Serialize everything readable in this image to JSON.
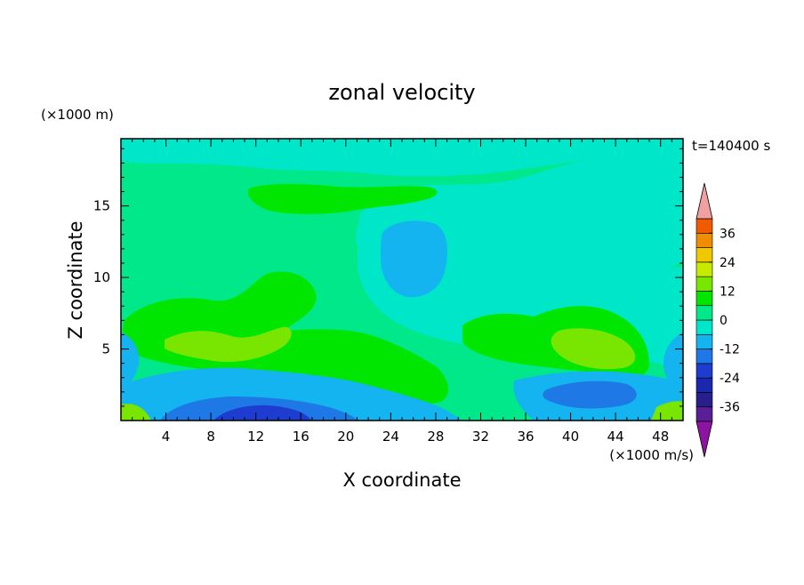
{
  "chart_data": {
    "type": "heatmap",
    "title": "zonal velocity",
    "time_label": "t=140400 s",
    "xlabel": "X coordinate",
    "ylabel": "Z coordinate",
    "x_unit": "(×1000 m/s)",
    "y_unit": "(×1000 m)",
    "xlim": [
      0,
      50
    ],
    "ylim": [
      0,
      19.7
    ],
    "x_ticks": [
      "4",
      "8",
      "12",
      "16",
      "20",
      "24",
      "28",
      "32",
      "36",
      "40",
      "44",
      "48"
    ],
    "x_tick_values": [
      4,
      8,
      12,
      16,
      20,
      24,
      28,
      32,
      36,
      40,
      44,
      48
    ],
    "y_ticks": [
      "5",
      "10",
      "15"
    ],
    "y_tick_values": [
      5,
      10,
      15
    ],
    "colorbar": {
      "levels": [
        -42,
        -36,
        -30,
        -24,
        -18,
        -12,
        -6,
        0,
        6,
        12,
        18,
        24,
        30,
        36,
        42
      ],
      "colors": [
        "#5a1e96",
        "#2a1e8c",
        "#1a28b0",
        "#1e3ccf",
        "#1e78e6",
        "#14b4f0",
        "#00e6c8",
        "#00e88a",
        "#00e600",
        "#78e600",
        "#c8ea00",
        "#f0c800",
        "#f08c00",
        "#f05a00",
        "#e61e1e",
        "#f0a0a0"
      ],
      "under_color": "#8c14a0",
      "over_color": "#f0a0a0",
      "tick_labels": [
        "36",
        "24",
        "12",
        "0",
        "-12",
        "-24",
        "-36"
      ],
      "tick_values": [
        36,
        24,
        12,
        0,
        -12,
        -24,
        -36
      ]
    },
    "field_regions": [
      {
        "name": "background",
        "value": 3
      },
      {
        "name": "top-band",
        "value": -3
      },
      {
        "name": "mid-right-plume",
        "value": -3
      },
      {
        "name": "central-jet",
        "value": 9
      },
      {
        "name": "central-jet-core",
        "value": 14
      },
      {
        "name": "right-jet",
        "value": 9
      },
      {
        "name": "right-jet-core",
        "value": 15
      },
      {
        "name": "upper-left-streak",
        "value": 9
      },
      {
        "name": "plume-core",
        "value": -9
      },
      {
        "name": "bottom-negative",
        "value": -9
      },
      {
        "name": "bottom-strong-negative",
        "value": -15
      },
      {
        "name": "bottom-core",
        "value": -21
      },
      {
        "name": "bottom-right-negative",
        "value": -9
      },
      {
        "name": "bottom-right-core",
        "value": -15
      },
      {
        "name": "bottom-left-positive",
        "value": 15
      },
      {
        "name": "bottom-right-positive",
        "value": 15
      },
      {
        "name": "left-edge-negative",
        "value": -9
      },
      {
        "name": "right-edge-negative",
        "value": -9
      }
    ]
  }
}
